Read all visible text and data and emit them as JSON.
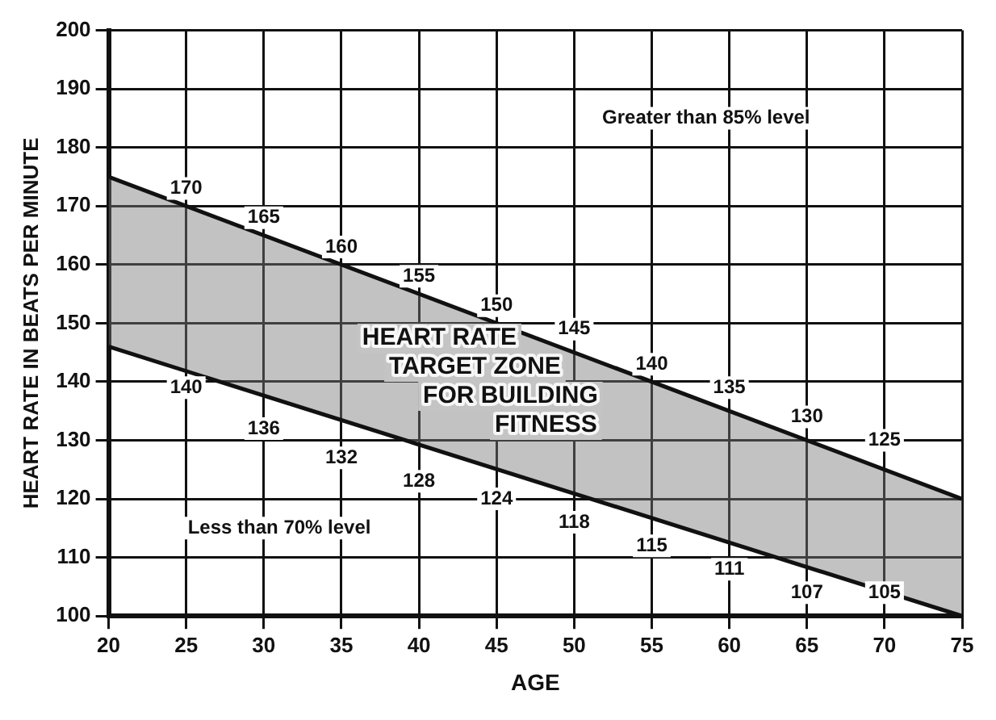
{
  "chart_data": {
    "type": "line",
    "xlabel": "AGE",
    "ylabel": "HEART RATE IN BEATS PER MINUTE",
    "xlim": [
      20,
      75
    ],
    "xticks": [
      20,
      25,
      30,
      35,
      40,
      45,
      50,
      55,
      60,
      65,
      70,
      75
    ],
    "ylim": [
      100,
      200
    ],
    "yticks": [
      100,
      110,
      120,
      130,
      140,
      150,
      160,
      170,
      180,
      190,
      200
    ],
    "x": [
      20,
      75
    ],
    "grid": true,
    "marker": "none",
    "line_style": "solid",
    "series": [
      {
        "values": [
          175,
          120
        ],
        "lower": [
          146,
          100
        ],
        "upper": [
          175,
          120
        ],
        "color": "#111111"
      },
      {
        "values": [
          146,
          100
        ],
        "color": "#111111"
      }
    ],
    "annotations": [
      "Greater than 85% level",
      "Less than 70% level",
      "HEART RATE\nTARGET ZONE\nFOR BUILDING\nFITNESS",
      {
        "text": "170",
        "x": 25,
        "y": 173
      },
      {
        "text": "165",
        "x": 30,
        "y": 168
      },
      {
        "text": "160",
        "x": 35,
        "y": 163
      },
      {
        "text": "155",
        "x": 40,
        "y": 158
      },
      {
        "text": "150",
        "x": 45,
        "y": 153
      },
      {
        "text": "145",
        "x": 50,
        "y": 149
      },
      {
        "text": "140",
        "x": 55,
        "y": 143
      },
      {
        "text": "135",
        "x": 60,
        "y": 139
      },
      {
        "text": "130",
        "x": 65,
        "y": 134
      },
      {
        "text": "125",
        "x": 70,
        "y": 130
      },
      {
        "text": "140",
        "x": 25,
        "y": 139
      },
      {
        "text": "136",
        "x": 30,
        "y": 132
      },
      {
        "text": "132",
        "x": 35,
        "y": 127
      },
      {
        "text": "128",
        "x": 40,
        "y": 123
      },
      {
        "text": "124",
        "x": 45,
        "y": 120
      },
      {
        "text": "118",
        "x": 50,
        "y": 116
      },
      {
        "text": "115",
        "x": 55,
        "y": 112
      },
      {
        "text": "111",
        "x": 60,
        "y": 108
      },
      {
        "text": "107",
        "x": 65,
        "y": 104
      },
      {
        "text": "105",
        "x": 70,
        "y": 104
      }
    ]
  }
}
